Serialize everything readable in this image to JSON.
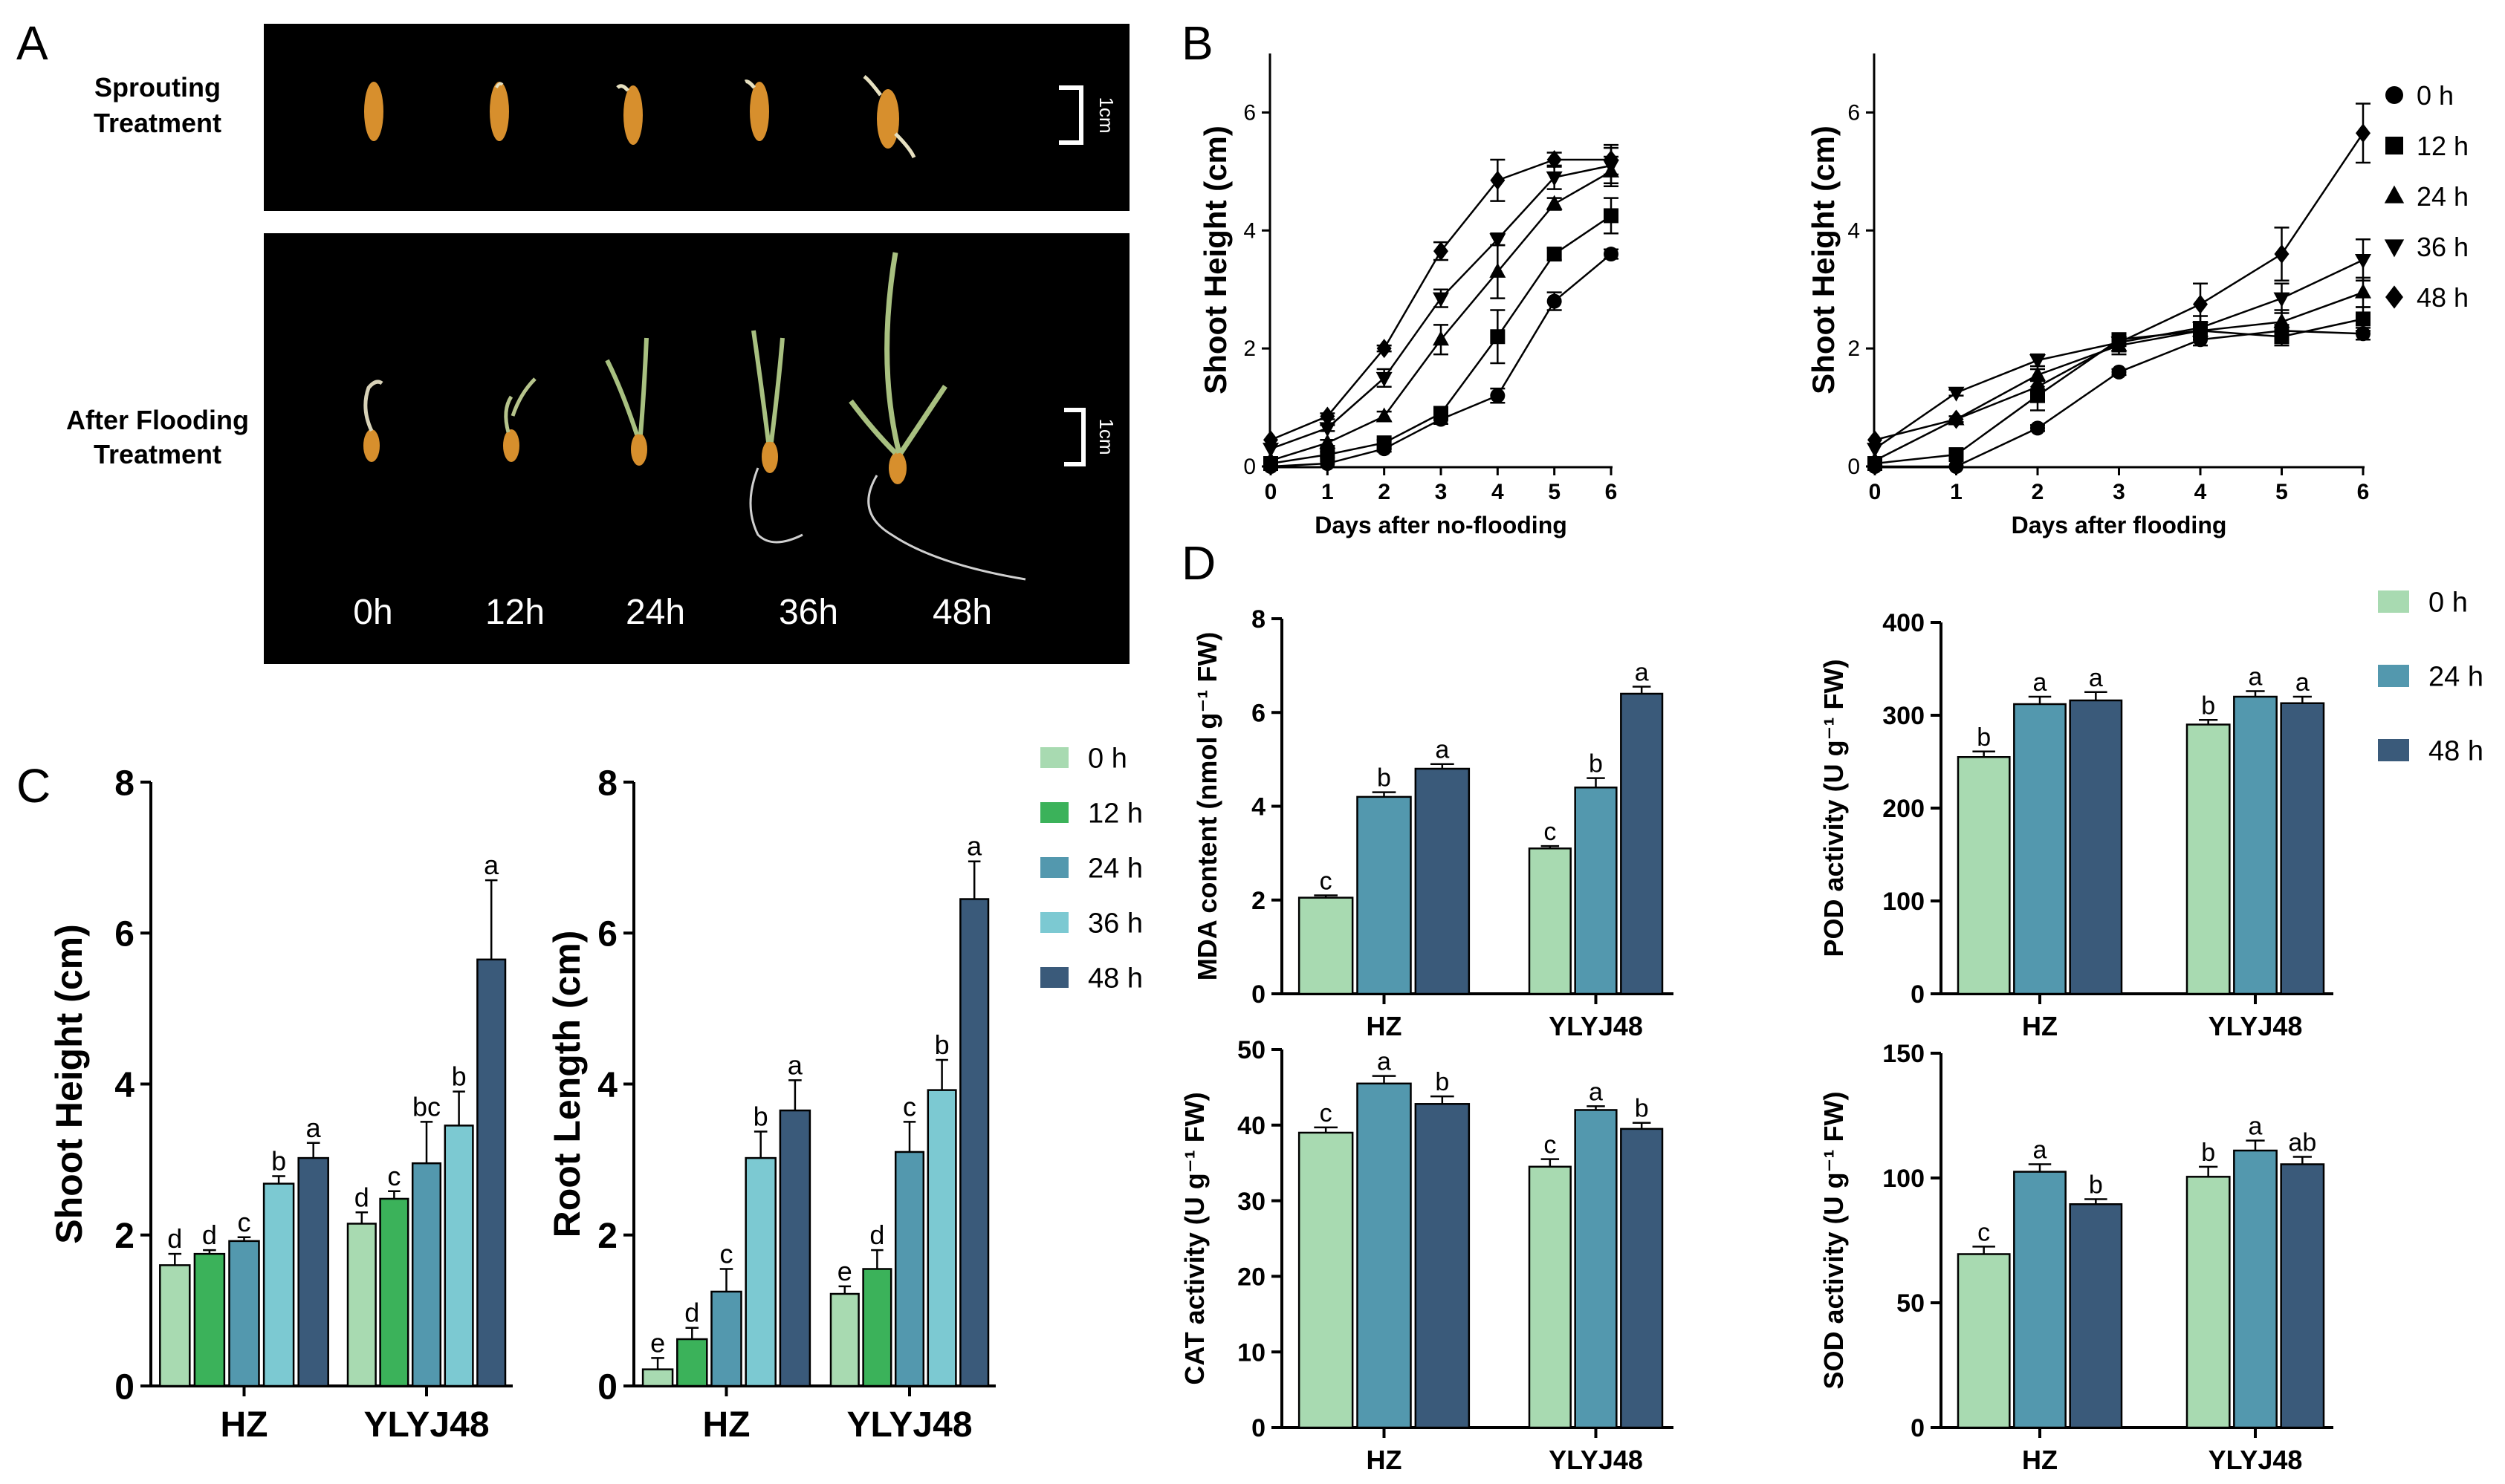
{
  "panel_letters": {
    "a": "A",
    "b": "B",
    "c": "C",
    "d": "D"
  },
  "photo": {
    "top_label_1": "Sprouting",
    "top_label_2": "Treatment",
    "bottom_label_1": "After Flooding",
    "bottom_label_2": "Treatment",
    "scale_label_top": "1cm",
    "scale_label_bottom": "1cm",
    "time_labels": [
      "0h",
      "12h",
      "24h",
      "36h",
      "48h"
    ]
  },
  "colors": {
    "c0": "#a8dab1",
    "c12": "#3bb25a",
    "c24": "#5398ae",
    "c36": "#7cc9d2",
    "c48": "#3a5a7a"
  },
  "chart_data": [
    {
      "id": "B1",
      "type": "line",
      "xlabel": "Days after no-flooding",
      "ylabel": "Shoot Height (cm)",
      "x": [
        0,
        1,
        2,
        3,
        4,
        5,
        6
      ],
      "xticks": [
        "0",
        "1",
        "2",
        "3",
        "4",
        "5",
        "6"
      ],
      "ylim": [
        0,
        7
      ],
      "yticks": [
        0,
        2,
        4,
        6
      ],
      "yticklabels": [
        "0",
        "2",
        "4",
        "6"
      ],
      "series": [
        {
          "name": "0 h",
          "marker": "circle",
          "values": [
            0.0,
            0.05,
            0.3,
            0.8,
            1.2,
            2.8,
            3.6
          ],
          "err": [
            0,
            0,
            0.05,
            0.08,
            0.12,
            0.15,
            0.08
          ]
        },
        {
          "name": "12 h",
          "marker": "square",
          "values": [
            0.05,
            0.2,
            0.4,
            0.9,
            2.2,
            3.6,
            4.25
          ],
          "err": [
            0,
            0.05,
            0.05,
            0.1,
            0.45,
            0.1,
            0.3
          ]
        },
        {
          "name": "24 h",
          "marker": "triangle-up",
          "values": [
            0.1,
            0.4,
            0.85,
            2.15,
            3.3,
            4.45,
            5.0
          ],
          "err": [
            0,
            0.05,
            0.08,
            0.25,
            0.45,
            0.1,
            0.25
          ]
        },
        {
          "name": "36 h",
          "marker": "triangle-down",
          "values": [
            0.3,
            0.65,
            1.5,
            2.85,
            3.85,
            4.9,
            5.1
          ],
          "err": [
            0,
            0.05,
            0.15,
            0.15,
            0.1,
            0.2,
            0.3
          ]
        },
        {
          "name": "48 h",
          "marker": "diamond",
          "values": [
            0.45,
            0.85,
            2.0,
            3.65,
            4.85,
            5.2,
            5.2
          ],
          "err": [
            0,
            0.05,
            0.05,
            0.15,
            0.35,
            0.12,
            0.25
          ]
        }
      ]
    },
    {
      "id": "B2",
      "type": "line",
      "xlabel": "Days after flooding",
      "ylabel": "Shoot Height (cm)",
      "x": [
        0,
        1,
        2,
        3,
        4,
        5,
        6
      ],
      "xticks": [
        "0",
        "1",
        "2",
        "3",
        "4",
        "5",
        "6"
      ],
      "ylim": [
        0,
        7
      ],
      "yticks": [
        0,
        2,
        4,
        6
      ],
      "yticklabels": [
        "0",
        "2",
        "4",
        "6"
      ],
      "legend": "right",
      "series": [
        {
          "name": "0 h",
          "marker": "circle",
          "values": [
            0.0,
            0.0,
            0.65,
            1.6,
            2.15,
            2.3,
            2.25
          ],
          "err": [
            0,
            0,
            0.05,
            0.05,
            0.1,
            0.1,
            0.1
          ]
        },
        {
          "name": "12 h",
          "marker": "square",
          "values": [
            0.05,
            0.2,
            1.2,
            2.15,
            2.3,
            2.2,
            2.5
          ],
          "err": [
            0,
            0.05,
            0.25,
            0.1,
            0.15,
            0.15,
            0.2
          ]
        },
        {
          "name": "24 h",
          "marker": "triangle-up",
          "values": [
            0.1,
            0.8,
            1.55,
            2.05,
            2.3,
            2.45,
            2.95
          ],
          "err": [
            0,
            0.05,
            0.1,
            0.15,
            0.15,
            0.2,
            0.25
          ]
        },
        {
          "name": "36 h",
          "marker": "triangle-down",
          "values": [
            0.3,
            1.25,
            1.8,
            2.1,
            2.35,
            2.85,
            3.5
          ],
          "err": [
            0,
            0.05,
            0.1,
            0.15,
            0.2,
            0.25,
            0.35
          ]
        },
        {
          "name": "48 h",
          "marker": "diamond",
          "values": [
            0.45,
            0.8,
            1.35,
            2.1,
            2.75,
            3.6,
            5.65
          ],
          "err": [
            0,
            0.05,
            0.1,
            0.15,
            0.35,
            0.45,
            0.5
          ]
        }
      ]
    },
    {
      "id": "C1",
      "type": "bar",
      "ylabel": "Shoot Height (cm)",
      "categories": [
        "HZ",
        "YLYJ48"
      ],
      "ylim": [
        0,
        8
      ],
      "yticks": [
        0,
        2,
        4,
        6,
        8
      ],
      "yticklabels": [
        "0",
        "2",
        "4",
        "6",
        "8"
      ],
      "series": [
        {
          "name": "0 h",
          "color": "c0",
          "values": [
            1.6,
            2.15
          ],
          "err": [
            0.15,
            0.15
          ],
          "letters": [
            "d",
            "d"
          ]
        },
        {
          "name": "12 h",
          "color": "c12",
          "values": [
            1.75,
            2.48
          ],
          "err": [
            0.05,
            0.1
          ],
          "letters": [
            "d",
            "c"
          ]
        },
        {
          "name": "24 h",
          "color": "c24",
          "values": [
            1.92,
            2.95
          ],
          "err": [
            0.05,
            0.55
          ],
          "letters": [
            "c",
            "bc"
          ]
        },
        {
          "name": "36 h",
          "color": "c36",
          "values": [
            2.68,
            3.45
          ],
          "err": [
            0.1,
            0.45
          ],
          "letters": [
            "b",
            "b"
          ]
        },
        {
          "name": "48 h",
          "color": "c48",
          "values": [
            3.02,
            5.65
          ],
          "err": [
            0.2,
            1.05
          ],
          "letters": [
            "a",
            "a"
          ]
        }
      ]
    },
    {
      "id": "C2",
      "type": "bar",
      "ylabel": "Root Length (cm)",
      "categories": [
        "HZ",
        "YLYJ48"
      ],
      "ylim": [
        0,
        8
      ],
      "yticks": [
        0,
        2,
        4,
        6,
        8
      ],
      "yticklabels": [
        "0",
        "2",
        "4",
        "6",
        "8"
      ],
      "legend": "right",
      "series": [
        {
          "name": "0 h",
          "color": "c0",
          "values": [
            0.22,
            1.22
          ],
          "err": [
            0.15,
            0.1
          ],
          "letters": [
            "e",
            "e"
          ]
        },
        {
          "name": "12 h",
          "color": "c12",
          "values": [
            0.62,
            1.55
          ],
          "err": [
            0.15,
            0.25
          ],
          "letters": [
            "d",
            "d"
          ]
        },
        {
          "name": "24 h",
          "color": "c24",
          "values": [
            1.25,
            3.1
          ],
          "err": [
            0.3,
            0.4
          ],
          "letters": [
            "c",
            "c"
          ]
        },
        {
          "name": "36 h",
          "color": "c36",
          "values": [
            3.02,
            3.92
          ],
          "err": [
            0.35,
            0.4
          ],
          "letters": [
            "b",
            "b"
          ]
        },
        {
          "name": "48 h",
          "color": "c48",
          "values": [
            3.65,
            6.45
          ],
          "err": [
            0.4,
            0.5
          ],
          "letters": [
            "a",
            "a"
          ]
        }
      ]
    },
    {
      "id": "D1",
      "type": "bar",
      "ylabel": "MDA content (nmol g⁻¹ FW)",
      "categories": [
        "HZ",
        "YLYJ48"
      ],
      "ylim": [
        0,
        8
      ],
      "yticks": [
        0,
        2,
        4,
        6,
        8
      ],
      "yticklabels": [
        "0",
        "2",
        "4",
        "6",
        "8"
      ],
      "series": [
        {
          "name": "0 h",
          "color": "c0",
          "values": [
            2.05,
            3.1
          ],
          "err": [
            0.05,
            0.05
          ],
          "letters": [
            "c",
            "c"
          ]
        },
        {
          "name": "24 h",
          "color": "c24",
          "values": [
            4.2,
            4.4
          ],
          "err": [
            0.1,
            0.2
          ],
          "letters": [
            "b",
            "b"
          ]
        },
        {
          "name": "48 h",
          "color": "c48",
          "values": [
            4.8,
            6.4
          ],
          "err": [
            0.1,
            0.15
          ],
          "letters": [
            "a",
            "a"
          ]
        }
      ]
    },
    {
      "id": "D2",
      "type": "bar",
      "ylabel": "POD activity (U g⁻¹ FW)",
      "categories": [
        "HZ",
        "YLYJ48"
      ],
      "ylim": [
        0,
        400
      ],
      "yticks": [
        0,
        100,
        200,
        300,
        400
      ],
      "yticklabels": [
        "0",
        "100",
        "200",
        "300",
        "400"
      ],
      "legend": "right",
      "series": [
        {
          "name": "0 h",
          "color": "c0",
          "values": [
            255,
            290
          ],
          "err": [
            6,
            5
          ],
          "letters": [
            "b",
            "b"
          ]
        },
        {
          "name": "24 h",
          "color": "c24",
          "values": [
            312,
            320
          ],
          "err": [
            8,
            6
          ],
          "letters": [
            "a",
            "a"
          ]
        },
        {
          "name": "48 h",
          "color": "c48",
          "values": [
            316,
            313
          ],
          "err": [
            9,
            7
          ],
          "letters": [
            "a",
            "a"
          ]
        }
      ]
    },
    {
      "id": "D3",
      "type": "bar",
      "ylabel": "CAT activity (U g⁻¹ FW)",
      "categories": [
        "HZ",
        "YLYJ48"
      ],
      "ylim": [
        0,
        50
      ],
      "yticks": [
        0,
        10,
        20,
        30,
        40,
        50
      ],
      "yticklabels": [
        "0",
        "10",
        "20",
        "30",
        "40",
        "50"
      ],
      "series": [
        {
          "name": "0 h",
          "color": "c0",
          "values": [
            39.0,
            34.5
          ],
          "err": [
            0.7,
            1.0
          ],
          "letters": [
            "c",
            "c"
          ]
        },
        {
          "name": "24 h",
          "color": "c24",
          "values": [
            45.5,
            42.0
          ],
          "err": [
            1.0,
            0.5
          ],
          "letters": [
            "a",
            "a"
          ]
        },
        {
          "name": "48 h",
          "color": "c48",
          "values": [
            42.8,
            39.5
          ],
          "err": [
            1.0,
            0.8
          ],
          "letters": [
            "b",
            "b"
          ]
        }
      ]
    },
    {
      "id": "D4",
      "type": "bar",
      "ylabel": "SOD activity (U g⁻¹ FW)",
      "categories": [
        "HZ",
        "YLYJ48"
      ],
      "ylim": [
        0,
        150
      ],
      "yticks": [
        0,
        50,
        100,
        150
      ],
      "yticklabels": [
        "0",
        "50",
        "100",
        "150"
      ],
      "series": [
        {
          "name": "0 h",
          "color": "c0",
          "values": [
            69.5,
            100.5
          ],
          "err": [
            3,
            4
          ],
          "letters": [
            "c",
            "b"
          ]
        },
        {
          "name": "24 h",
          "color": "c24",
          "values": [
            102.5,
            111.0
          ],
          "err": [
            3,
            4
          ],
          "letters": [
            "a",
            "a"
          ]
        },
        {
          "name": "48 h",
          "color": "c48",
          "values": [
            89.5,
            105.5
          ],
          "err": [
            2,
            3
          ],
          "letters": [
            "b",
            "ab"
          ]
        }
      ]
    }
  ]
}
